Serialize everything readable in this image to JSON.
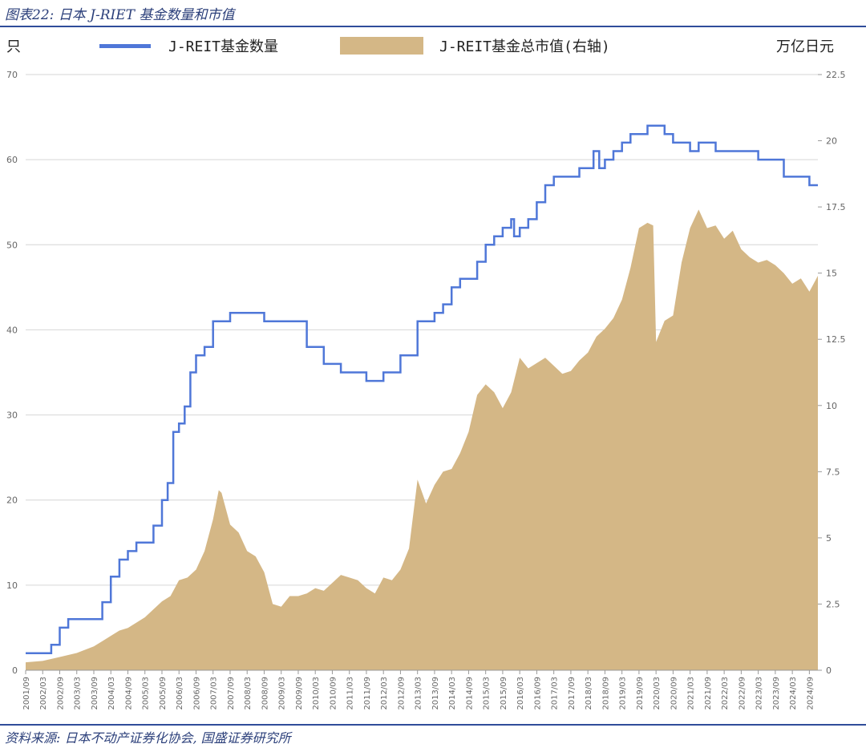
{
  "figure": {
    "title": "图表22:  日本 J-RIET 基金数量和市值",
    "source": "资料来源:  日本不动产证券化协会, 国盛证券研究所"
  },
  "colors": {
    "line": "#4f77d8",
    "area": "#d4b786",
    "grid": "#d6d6d6",
    "axis_text": "#666666",
    "rule": "#2f4d9a"
  },
  "chart_data": {
    "type": "line+area",
    "left_unit": "只",
    "right_unit": "万亿日元",
    "legend_position": "top",
    "grid": true,
    "y_left": {
      "range": [
        0,
        70
      ],
      "ticks": [
        "0",
        "10",
        "20",
        "30",
        "40",
        "50",
        "60",
        "70"
      ]
    },
    "y_right": {
      "range": [
        0,
        22.5
      ],
      "ticks": [
        "0",
        "2.5",
        "5",
        "7.5",
        "10",
        "12.5",
        "15",
        "17.5",
        "20",
        "22.5"
      ]
    },
    "x_ticks": [
      "2001/09",
      "2002/03",
      "2002/09",
      "2003/03",
      "2003/09",
      "2004/03",
      "2004/09",
      "2005/03",
      "2005/09",
      "2006/03",
      "2006/09",
      "2007/03",
      "2007/09",
      "2008/03",
      "2008/09",
      "2009/03",
      "2009/09",
      "2010/03",
      "2010/09",
      "2011/03",
      "2011/09",
      "2012/03",
      "2012/09",
      "2013/03",
      "2013/09",
      "2014/03",
      "2014/09",
      "2015/03",
      "2015/09",
      "2016/03",
      "2016/09",
      "2017/03",
      "2017/09",
      "2018/03",
      "2018/09",
      "2019/03",
      "2019/09",
      "2020/03",
      "2020/09",
      "2021/03",
      "2021/09",
      "2022/03",
      "2022/09",
      "2023/03",
      "2023/09",
      "2024/03",
      "2024/09"
    ],
    "series": [
      {
        "name": "J-REIT基金数量",
        "kind": "line",
        "axis": "left",
        "values": [
          [
            "2001/09",
            2
          ],
          [
            "2002/03",
            2
          ],
          [
            "2002/06",
            3
          ],
          [
            "2002/09",
            5
          ],
          [
            "2002/12",
            6
          ],
          [
            "2003/03",
            6
          ],
          [
            "2003/06",
            6
          ],
          [
            "2003/09",
            6
          ],
          [
            "2003/12",
            8
          ],
          [
            "2004/03",
            11
          ],
          [
            "2004/06",
            13
          ],
          [
            "2004/09",
            14
          ],
          [
            "2004/12",
            15
          ],
          [
            "2005/03",
            15
          ],
          [
            "2005/06",
            17
          ],
          [
            "2005/09",
            20
          ],
          [
            "2005/11",
            22
          ],
          [
            "2006/01",
            28
          ],
          [
            "2006/03",
            29
          ],
          [
            "2006/05",
            31
          ],
          [
            "2006/07",
            35
          ],
          [
            "2006/09",
            37
          ],
          [
            "2006/12",
            38
          ],
          [
            "2007/03",
            41
          ],
          [
            "2007/06",
            41
          ],
          [
            "2007/09",
            42
          ],
          [
            "2008/03",
            42
          ],
          [
            "2008/09",
            41
          ],
          [
            "2009/03",
            41
          ],
          [
            "2009/09",
            41
          ],
          [
            "2009/12",
            38
          ],
          [
            "2010/03",
            38
          ],
          [
            "2010/06",
            36
          ],
          [
            "2010/09",
            36
          ],
          [
            "2010/12",
            35
          ],
          [
            "2011/03",
            35
          ],
          [
            "2011/09",
            34
          ],
          [
            "2012/03",
            35
          ],
          [
            "2012/09",
            37
          ],
          [
            "2013/03",
            41
          ],
          [
            "2013/06",
            41
          ],
          [
            "2013/09",
            42
          ],
          [
            "2013/12",
            43
          ],
          [
            "2014/03",
            45
          ],
          [
            "2014/06",
            46
          ],
          [
            "2014/09",
            46
          ],
          [
            "2014/12",
            48
          ],
          [
            "2015/03",
            50
          ],
          [
            "2015/06",
            51
          ],
          [
            "2015/09",
            52
          ],
          [
            "2015/12",
            53
          ],
          [
            "2016/01",
            51
          ],
          [
            "2016/03",
            52
          ],
          [
            "2016/06",
            53
          ],
          [
            "2016/09",
            55
          ],
          [
            "2016/12",
            57
          ],
          [
            "2017/03",
            58
          ],
          [
            "2017/06",
            58
          ],
          [
            "2017/09",
            58
          ],
          [
            "2017/12",
            59
          ],
          [
            "2018/03",
            59
          ],
          [
            "2018/05",
            61
          ],
          [
            "2018/07",
            59
          ],
          [
            "2018/09",
            60
          ],
          [
            "2018/12",
            61
          ],
          [
            "2019/03",
            62
          ],
          [
            "2019/06",
            63
          ],
          [
            "2019/09",
            63
          ],
          [
            "2019/12",
            64
          ],
          [
            "2020/03",
            64
          ],
          [
            "2020/06",
            63
          ],
          [
            "2020/09",
            62
          ],
          [
            "2020/12",
            62
          ],
          [
            "2021/03",
            61
          ],
          [
            "2021/06",
            62
          ],
          [
            "2021/09",
            62
          ],
          [
            "2021/12",
            61
          ],
          [
            "2022/03",
            61
          ],
          [
            "2022/09",
            61
          ],
          [
            "2023/03",
            60
          ],
          [
            "2023/09",
            60
          ],
          [
            "2023/12",
            58
          ],
          [
            "2024/03",
            58
          ],
          [
            "2024/09",
            57
          ],
          [
            "2024/12",
            57
          ]
        ]
      },
      {
        "name": "J-REIT基金总市值(右轴)",
        "kind": "area",
        "axis": "right",
        "values": [
          [
            "2001/09",
            0.3
          ],
          [
            "2002/03",
            0.35
          ],
          [
            "2002/09",
            0.5
          ],
          [
            "2003/03",
            0.65
          ],
          [
            "2003/09",
            0.9
          ],
          [
            "2004/03",
            1.3
          ],
          [
            "2004/06",
            1.5
          ],
          [
            "2004/09",
            1.6
          ],
          [
            "2004/12",
            1.8
          ],
          [
            "2005/03",
            2.0
          ],
          [
            "2005/06",
            2.3
          ],
          [
            "2005/09",
            2.6
          ],
          [
            "2005/12",
            2.8
          ],
          [
            "2006/03",
            3.4
          ],
          [
            "2006/06",
            3.5
          ],
          [
            "2006/09",
            3.8
          ],
          [
            "2006/12",
            4.5
          ],
          [
            "2007/03",
            5.7
          ],
          [
            "2007/05",
            6.8
          ],
          [
            "2007/06",
            6.7
          ],
          [
            "2007/09",
            5.5
          ],
          [
            "2007/12",
            5.2
          ],
          [
            "2008/03",
            4.5
          ],
          [
            "2008/06",
            4.3
          ],
          [
            "2008/09",
            3.7
          ],
          [
            "2008/12",
            2.5
          ],
          [
            "2009/03",
            2.4
          ],
          [
            "2009/06",
            2.8
          ],
          [
            "2009/09",
            2.8
          ],
          [
            "2009/12",
            2.9
          ],
          [
            "2010/03",
            3.1
          ],
          [
            "2010/06",
            3.0
          ],
          [
            "2010/09",
            3.3
          ],
          [
            "2010/12",
            3.6
          ],
          [
            "2011/03",
            3.5
          ],
          [
            "2011/06",
            3.4
          ],
          [
            "2011/09",
            3.1
          ],
          [
            "2011/12",
            2.9
          ],
          [
            "2012/03",
            3.5
          ],
          [
            "2012/06",
            3.4
          ],
          [
            "2012/09",
            3.8
          ],
          [
            "2012/12",
            4.6
          ],
          [
            "2013/03",
            7.2
          ],
          [
            "2013/06",
            6.3
          ],
          [
            "2013/09",
            7.0
          ],
          [
            "2013/12",
            7.5
          ],
          [
            "2014/03",
            7.6
          ],
          [
            "2014/06",
            8.2
          ],
          [
            "2014/09",
            9.0
          ],
          [
            "2014/12",
            10.4
          ],
          [
            "2015/03",
            10.8
          ],
          [
            "2015/06",
            10.5
          ],
          [
            "2015/09",
            9.9
          ],
          [
            "2015/12",
            10.5
          ],
          [
            "2016/03",
            11.8
          ],
          [
            "2016/06",
            11.4
          ],
          [
            "2016/09",
            11.6
          ],
          [
            "2016/12",
            11.8
          ],
          [
            "2017/03",
            11.5
          ],
          [
            "2017/06",
            11.2
          ],
          [
            "2017/09",
            11.3
          ],
          [
            "2017/12",
            11.7
          ],
          [
            "2018/03",
            12.0
          ],
          [
            "2018/06",
            12.6
          ],
          [
            "2018/09",
            12.9
          ],
          [
            "2018/12",
            13.3
          ],
          [
            "2019/03",
            14.0
          ],
          [
            "2019/06",
            15.2
          ],
          [
            "2019/09",
            16.7
          ],
          [
            "2019/12",
            16.9
          ],
          [
            "2020/02",
            16.8
          ],
          [
            "2020/03",
            12.4
          ],
          [
            "2020/06",
            13.2
          ],
          [
            "2020/09",
            13.4
          ],
          [
            "2020/12",
            15.4
          ],
          [
            "2021/03",
            16.7
          ],
          [
            "2021/06",
            17.4
          ],
          [
            "2021/09",
            16.7
          ],
          [
            "2021/12",
            16.8
          ],
          [
            "2022/03",
            16.3
          ],
          [
            "2022/06",
            16.6
          ],
          [
            "2022/09",
            15.9
          ],
          [
            "2022/12",
            15.6
          ],
          [
            "2023/03",
            15.4
          ],
          [
            "2023/06",
            15.5
          ],
          [
            "2023/09",
            15.3
          ],
          [
            "2023/12",
            15.0
          ],
          [
            "2024/03",
            14.6
          ],
          [
            "2024/06",
            14.8
          ],
          [
            "2024/09",
            14.3
          ],
          [
            "2024/12",
            14.9
          ]
        ]
      }
    ]
  }
}
